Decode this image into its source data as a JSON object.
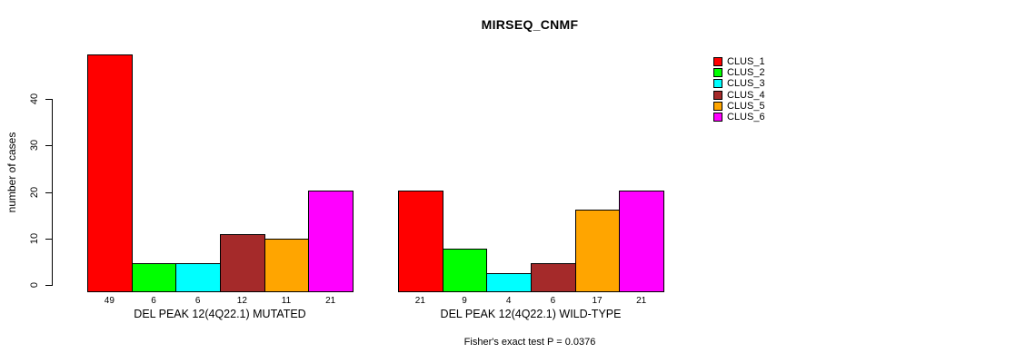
{
  "chart_data": {
    "type": "bar",
    "title": "MIRSEQ_CNMF",
    "ylabel": "number of cases",
    "xlabel": "",
    "yticks": [
      0,
      10,
      20,
      30,
      40
    ],
    "ylim": [
      0,
      49
    ],
    "grid": false,
    "legend_position": "right-top",
    "bar_value_labels": true,
    "series_labels": [
      "CLUS_1",
      "CLUS_2",
      "CLUS_3",
      "CLUS_4",
      "CLUS_5",
      "CLUS_6"
    ],
    "series_colors": [
      "#FF0000",
      "#00FF00",
      "#00FFFF",
      "#A52A2A",
      "#FFA500",
      "#FF00FF"
    ],
    "groups": [
      {
        "label": "DEL PEAK 12(4Q22.1) MUTATED",
        "values": [
          49,
          6,
          6,
          12,
          11,
          21
        ]
      },
      {
        "label": "DEL PEAK 12(4Q22.1) WILD-TYPE",
        "values": [
          21,
          9,
          4,
          6,
          17,
          21
        ]
      }
    ],
    "annotation": "Fisher's exact test P = 0.0376"
  },
  "colors": {
    "background": "#FFFFFF",
    "axis": "#000000",
    "text": "#000000"
  }
}
